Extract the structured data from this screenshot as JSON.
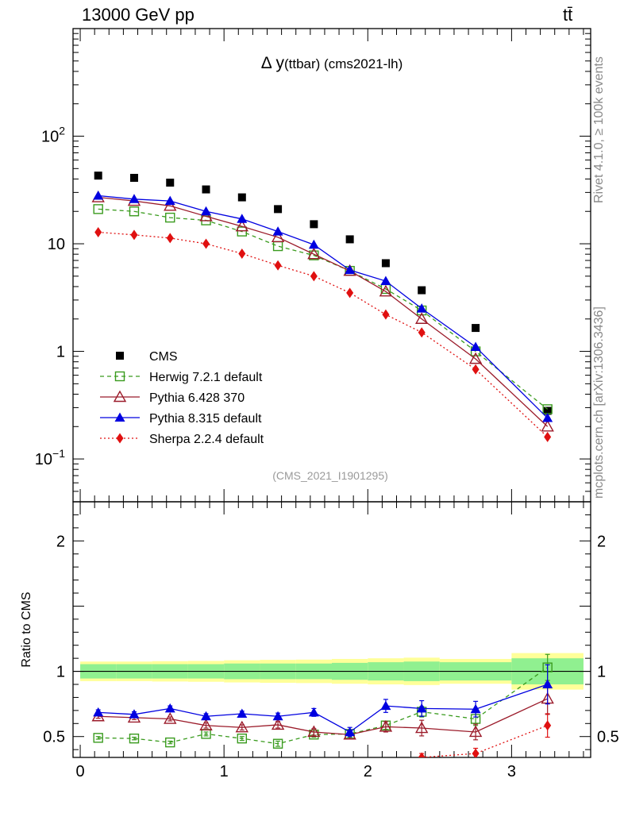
{
  "header": {
    "energy_label": "13000 GeV pp",
    "process_label": "tt̄"
  },
  "side_labels": {
    "rivet": "Rivet 4.1.0, ≥ 100k events",
    "mcplots": "mcplots.cern.ch [arXiv:1306.3436]"
  },
  "chart_data": [
    {
      "type": "line",
      "title": "Δ y(ttbar) (cms2021-lh)",
      "analysis_tag": "(CMS_2021_I1901295)",
      "xlabel": "",
      "ylabel": "",
      "yscale": "log",
      "xlim": [
        -0.05,
        3.55
      ],
      "ylim": [
        0.04,
        1000
      ],
      "ytick_labels": [
        "10^-1",
        "1",
        "10",
        "10^2"
      ],
      "legend": [
        "CMS",
        "Herwig 7.2.1 default",
        "Pythia 6.428 370",
        "Pythia 8.315 default",
        "Sherpa 2.2.4 default"
      ],
      "legend_location": "lower-left",
      "x": [
        0.125,
        0.375,
        0.625,
        0.875,
        1.125,
        1.375,
        1.625,
        1.875,
        2.125,
        2.375,
        2.75,
        3.25
      ],
      "series": [
        {
          "name": "CMS",
          "color": "#000000",
          "marker": "square",
          "line": "none",
          "values": [
            43,
            41,
            37,
            32,
            27,
            21,
            15.2,
            11,
            6.6,
            3.7,
            1.65,
            0.28
          ]
        },
        {
          "name": "Herwig 7.2.1 default",
          "color": "#3a9b1e",
          "marker": "open-square",
          "line": "dashed",
          "values": [
            21,
            20,
            17.5,
            16.5,
            13,
            9.5,
            7.8,
            5.6,
            3.8,
            2.4,
            1.0,
            0.29
          ]
        },
        {
          "name": "Pythia 6.428 370",
          "color": "#9b1b2a",
          "marker": "open-triangle",
          "line": "solid",
          "values": [
            27,
            25,
            22.5,
            18,
            14.5,
            11.5,
            8,
            5.6,
            3.6,
            2.0,
            0.85,
            0.2
          ]
        },
        {
          "name": "Pythia 8.315 default",
          "color": "#0000e0",
          "marker": "triangle",
          "line": "solid",
          "values": [
            28,
            26,
            25,
            20,
            17,
            13,
            9.8,
            5.7,
            4.5,
            2.5,
            1.1,
            0.24
          ]
        },
        {
          "name": "Sherpa 2.2.4 default",
          "color": "#e01010",
          "marker": "diamond",
          "line": "dotted",
          "values": [
            12.8,
            12.1,
            11.3,
            10,
            8.1,
            6.3,
            5.0,
            3.5,
            2.2,
            1.5,
            0.68,
            0.16
          ]
        }
      ]
    },
    {
      "type": "line",
      "title": "",
      "xlabel": "",
      "ylabel": "Ratio to CMS",
      "xlim": [
        -0.05,
        3.55
      ],
      "ylim": [
        0.34,
        2.3
      ],
      "ytick_labels": [
        "0.5",
        "1",
        "2"
      ],
      "xtick_labels": [
        "0",
        "1",
        "2",
        "3"
      ],
      "x": [
        0.125,
        0.375,
        0.625,
        0.875,
        1.125,
        1.375,
        1.625,
        1.875,
        2.125,
        2.375,
        2.75,
        3.25
      ],
      "band_edges": [
        0,
        0.25,
        0.5,
        0.75,
        1.0,
        1.25,
        1.5,
        1.75,
        2.0,
        2.25,
        2.5,
        3.0,
        3.5
      ],
      "band_inner": [
        0.055,
        0.055,
        0.055,
        0.055,
        0.06,
        0.06,
        0.06,
        0.065,
        0.07,
        0.075,
        0.07,
        0.1
      ],
      "band_outer": [
        0.075,
        0.075,
        0.078,
        0.08,
        0.085,
        0.088,
        0.09,
        0.095,
        0.1,
        0.105,
        0.095,
        0.14
      ],
      "series": [
        {
          "name": "Herwig 7.2.1 default",
          "color": "#3a9b1e",
          "marker": "open-square",
          "line": "dashed",
          "values": [
            0.49,
            0.485,
            0.455,
            0.52,
            0.485,
            0.445,
            0.515,
            0.52,
            0.585,
            0.69,
            0.635,
            1.03
          ],
          "errors": [
            0.01,
            0.01,
            0.01,
            0.015,
            0.015,
            0.02,
            0.02,
            0.025,
            0.03,
            0.04,
            0.05,
            0.1
          ]
        },
        {
          "name": "Pythia 6.428 370",
          "color": "#9b1b2a",
          "marker": "open-triangle",
          "line": "solid",
          "values": [
            0.655,
            0.645,
            0.635,
            0.585,
            0.57,
            0.59,
            0.535,
            0.515,
            0.575,
            0.565,
            0.535,
            0.79
          ],
          "errors": [
            0.015,
            0.015,
            0.015,
            0.02,
            0.02,
            0.025,
            0.025,
            0.03,
            0.04,
            0.06,
            0.06,
            0.12
          ]
        },
        {
          "name": "Pythia 8.315 default",
          "color": "#0000e0",
          "marker": "triangle",
          "line": "solid",
          "values": [
            0.685,
            0.67,
            0.715,
            0.655,
            0.675,
            0.655,
            0.685,
            0.535,
            0.735,
            0.715,
            0.71,
            0.9
          ],
          "errors": [
            0.02,
            0.02,
            0.02,
            0.02,
            0.02,
            0.025,
            0.03,
            0.035,
            0.05,
            0.06,
            0.06,
            0.15
          ]
        },
        {
          "name": "Sherpa 2.2.4 default",
          "color": "#e01010",
          "marker": "diamond",
          "line": "dotted",
          "values": [
            null,
            null,
            null,
            null,
            null,
            null,
            null,
            null,
            null,
            0.34,
            0.37,
            0.585
          ],
          "errors": [
            0,
            0,
            0,
            0,
            0,
            0,
            0,
            0,
            0,
            0.03,
            0.04,
            0.09
          ]
        }
      ]
    }
  ]
}
